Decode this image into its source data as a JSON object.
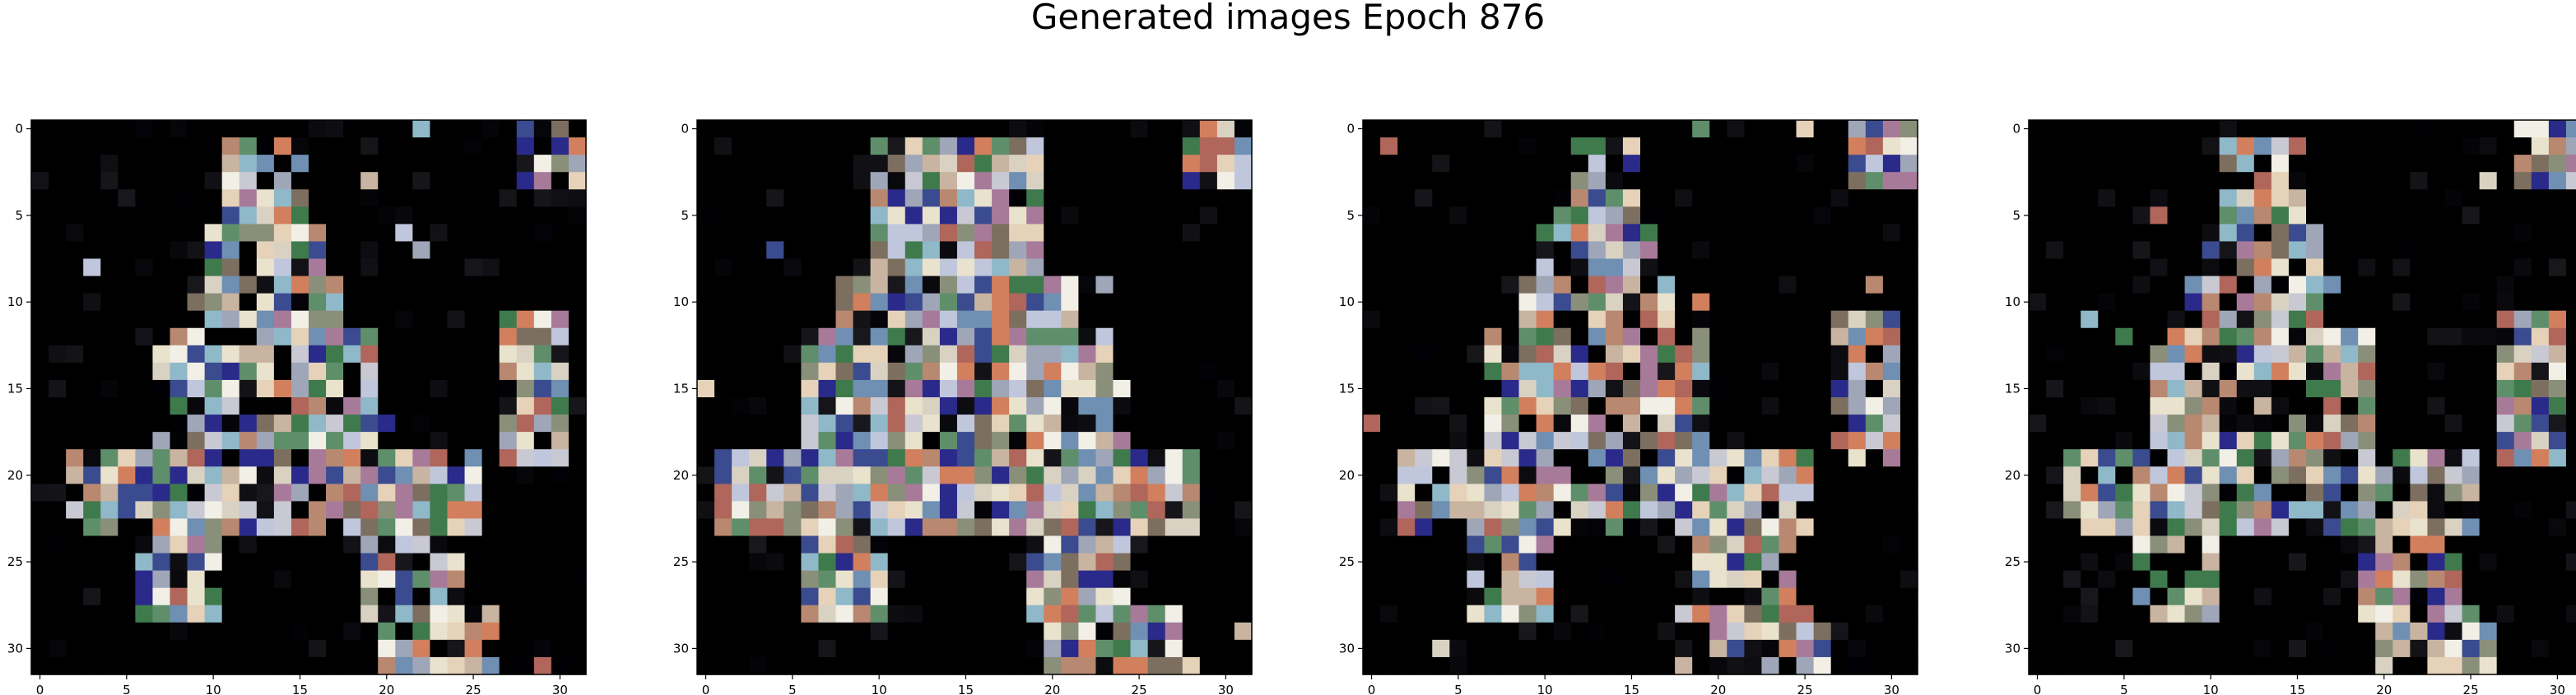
{
  "chart_data": {
    "type": "heatmap",
    "title": "Generated images Epoch 876",
    "grid": false,
    "image_resolution": [
      32,
      32
    ],
    "subplots": [
      {
        "id": "sample-1",
        "xlim": [
          -0.5,
          31.5
        ],
        "ylim": [
          31.5,
          -0.5
        ],
        "xticks": [
          0,
          5,
          10,
          15,
          20,
          25,
          30
        ],
        "yticks": [
          0,
          5,
          10,
          15,
          20,
          25,
          30
        ],
        "density": "sparse"
      },
      {
        "id": "sample-2",
        "xlim": [
          -0.5,
          31.5
        ],
        "ylim": [
          31.5,
          -0.5
        ],
        "xticks": [
          0,
          5,
          10,
          15,
          20,
          25,
          30
        ],
        "yticks": [
          0,
          5,
          10,
          15,
          20,
          25,
          30
        ],
        "density": "dense"
      },
      {
        "id": "sample-3",
        "xlim": [
          -0.5,
          31.5
        ],
        "ylim": [
          31.5,
          -0.5
        ],
        "xticks": [
          0,
          5,
          10,
          15,
          20,
          25,
          30
        ],
        "yticks": [
          0,
          5,
          10,
          15,
          20,
          25,
          30
        ],
        "density": "sparse"
      },
      {
        "id": "sample-4",
        "xlim": [
          -0.5,
          31.5
        ],
        "ylim": [
          31.5,
          -0.5
        ],
        "xticks": [
          0,
          5,
          10,
          15,
          20,
          25,
          30
        ],
        "yticks": [
          0,
          5,
          10,
          15,
          20,
          25,
          30
        ],
        "density": "sparse"
      }
    ],
    "background_color": "#000000",
    "palette": [
      "#f2efe6",
      "#d9d2c3",
      "#c8b4a0",
      "#b98870",
      "#9fa6b8",
      "#c9c9d4",
      "#8a8f7a",
      "#b0665a",
      "#6f8fb3",
      "#2a2a8a",
      "#3f7a4d",
      "#8fb8c9",
      "#d27f5e",
      "#e5d2b8",
      "#a87a9a",
      "#5f8f6a",
      "#c0c7dc",
      "#e9e2cc",
      "#7d6f60",
      "#3b4b8f"
    ]
  }
}
